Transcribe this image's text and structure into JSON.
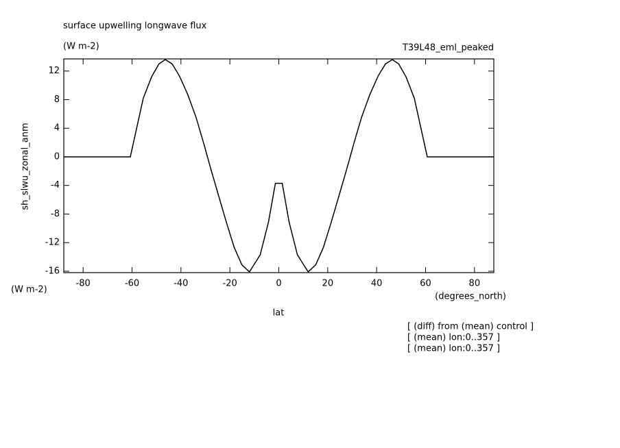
{
  "chart_data": {
    "type": "line",
    "title": "surface upwelling longwave flux",
    "units_top": "(W m-2)",
    "dataset": "T39L48_eml_peaked",
    "y_label": "sh_slwu_zonal_anm",
    "y_units": "(W m-2)",
    "x_label": "lat",
    "x_units": "(degrees_north)",
    "notes": [
      "[ (diff) from (mean) control ]",
      "[ (mean) lon:0..357 ]",
      "[ (mean) lon:0..357 ]"
    ],
    "x": [
      -87.9,
      -60.7,
      -55.4,
      -52.0,
      -49.0,
      -46.4,
      -43.6,
      -40.6,
      -37.2,
      -33.8,
      -30.8,
      -27.7,
      -24.3,
      -21.3,
      -18.2,
      -15.1,
      -12.0,
      -7.6,
      -4.2,
      -1.4,
      1.4,
      4.2,
      7.6,
      12.0,
      15.1,
      18.2,
      21.3,
      24.3,
      27.7,
      30.8,
      33.8,
      37.2,
      40.6,
      43.6,
      46.4,
      49.0,
      52.0,
      55.4,
      60.7,
      87.9
    ],
    "series": [
      {
        "name": "sh_slwu_zonal_anm",
        "color": "#000000",
        "values": [
          0,
          0,
          8.2,
          11.2,
          13.0,
          13.6,
          13.0,
          11.3,
          8.7,
          5.5,
          2.0,
          -1.8,
          -5.8,
          -9.3,
          -12.7,
          -15.1,
          -16.1,
          -13.7,
          -9.1,
          -3.7,
          -3.7,
          -9.1,
          -13.7,
          -16.1,
          -15.1,
          -12.7,
          -9.3,
          -5.8,
          -1.8,
          2.0,
          5.5,
          8.7,
          11.3,
          13.0,
          13.6,
          13.0,
          11.2,
          8.2,
          0,
          0
        ]
      }
    ],
    "xlim": [
      -87.9,
      87.9
    ],
    "ylim": [
      -16.2,
      13.7
    ],
    "xticks": [
      -80,
      -60,
      -40,
      -20,
      0,
      20,
      40,
      60,
      80
    ],
    "yticks": [
      -16,
      -12,
      -8,
      -4,
      0,
      4,
      8,
      12
    ]
  }
}
